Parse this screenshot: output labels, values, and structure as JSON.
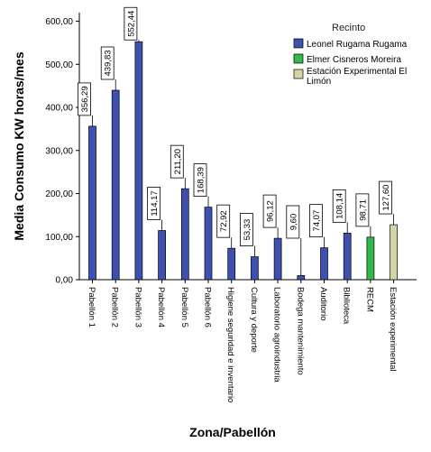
{
  "chart_data": {
    "type": "bar",
    "xlabel": "Zona/Pabellón",
    "ylabel": "Media Consumo KW horas/mes",
    "ylim": [
      0,
      600
    ],
    "yticks": [
      "0,00",
      "100,00",
      "200,00",
      "300,00",
      "400,00",
      "500,00",
      "600,00"
    ],
    "yticks_values": [
      0,
      100,
      200,
      300,
      400,
      500,
      600
    ],
    "grid": false,
    "legend": {
      "title": "Recinto",
      "placement": "top-right",
      "entries": [
        {
          "name": "Leonel Rugama Rugama",
          "color": "#3f51b0"
        },
        {
          "name": "Elmer Cisneros Moreira",
          "color": "#33b84a"
        },
        {
          "name_lines": [
            "Estación Experimental El",
            "Limón"
          ],
          "color": "#d6d3a4"
        }
      ]
    },
    "categories": [
      "Pabellón 1",
      "Pabellón 2",
      "Pabellón 3",
      "Pabellón 4",
      "Pabellón 5",
      "Pabellón 6",
      "Higiene seguridad e inventario",
      "Cultura y deporte",
      "Laboratorio agroindustria",
      "Bodega mantenimiento",
      "Auditorio",
      "Biblioteca",
      "RECM",
      "Estación experimental"
    ],
    "values": [
      356.29,
      439.83,
      552.44,
      114.17,
      211.2,
      168.39,
      72.92,
      53.33,
      96.12,
      9.6,
      74.07,
      108.14,
      98.71,
      127.6
    ],
    "value_labels": [
      "356,29",
      "439,83",
      "552,44",
      "114,17",
      "211,20",
      "168,39",
      "72,92",
      "53,33",
      "96,12",
      "9,60",
      "74,07",
      "108,14",
      "98,71",
      "127,60"
    ],
    "series_index": [
      0,
      0,
      0,
      0,
      0,
      0,
      0,
      0,
      0,
      0,
      0,
      0,
      1,
      2
    ]
  }
}
